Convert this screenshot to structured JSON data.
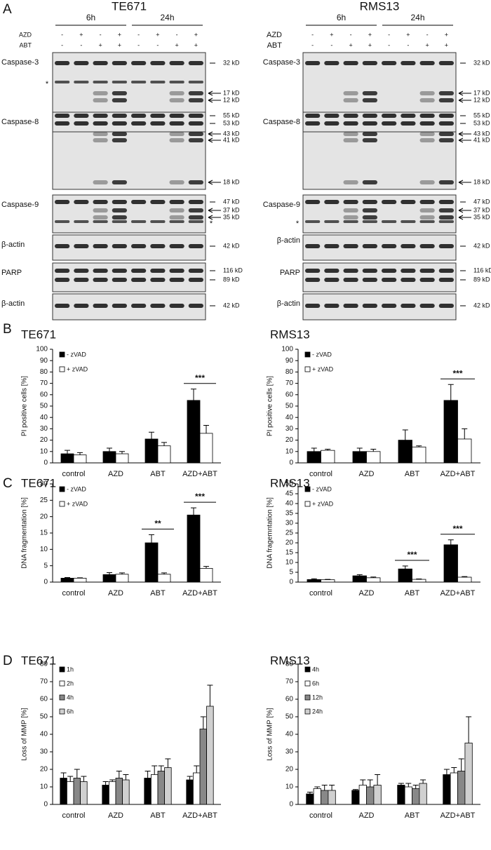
{
  "panel_labels": [
    "A",
    "B",
    "C",
    "D"
  ],
  "blots": [
    {
      "title": "TE671",
      "time_labels": [
        "6h",
        "24h"
      ],
      "treatments": [
        {
          "name": "AZD",
          "marks": [
            "-",
            "+",
            "-",
            "+",
            "-",
            "+",
            "-",
            "+"
          ]
        },
        {
          "name": "ABT",
          "marks": [
            "-",
            "-",
            "+",
            "+",
            "-",
            "-",
            "+",
            "+"
          ]
        }
      ],
      "rows": [
        {
          "label": "Caspase-3",
          "markers": [
            "32 kD",
            "17 kD",
            "12 kD"
          ],
          "asterisk": "*",
          "asterisk_side": "left"
        },
        {
          "label": "Caspase-8",
          "markers": [
            "55 kD",
            "53 kD",
            "43 kD",
            "41 kD",
            "18 kD"
          ]
        },
        {
          "label": "Caspase-9",
          "markers": [
            "47 kD",
            "37 kD",
            "35 kD"
          ],
          "asterisk": "*",
          "asterisk_side": "right"
        },
        {
          "label": "β-actin",
          "markers": [
            "42 kD"
          ]
        },
        {
          "label": "PARP",
          "markers": [
            "116 kD",
            "89 kD"
          ]
        },
        {
          "label": "β-actin",
          "markers": [
            "42 kD"
          ]
        }
      ]
    },
    {
      "title": "RMS13",
      "time_labels": [
        "6h",
        "24h"
      ],
      "treatments": [
        {
          "name": "AZD",
          "marks": [
            "-",
            "+",
            "-",
            "+",
            "-",
            "+",
            "-",
            "+"
          ]
        },
        {
          "name": "ABT",
          "marks": [
            "-",
            "-",
            "+",
            "+",
            "-",
            "-",
            "+",
            "+"
          ]
        }
      ],
      "rows": [
        {
          "label": "Caspase-3",
          "markers": [
            "32 kD",
            "17 kD",
            "12 kD"
          ]
        },
        {
          "label": "Caspase-8",
          "markers": [
            "55 kD",
            "53 kD",
            "43 kD",
            "41 kD",
            "18 kD"
          ]
        },
        {
          "label": "Caspase-9",
          "markers": [
            "47 kD",
            "37 kD",
            "35 kD"
          ],
          "asterisk": "*",
          "asterisk_side": "left"
        },
        {
          "label": "β-actin",
          "markers": [
            "42 kD"
          ]
        },
        {
          "label": "PARP",
          "markers": [
            "116 kD",
            "89 kD"
          ]
        },
        {
          "label": "β-actin",
          "markers": [
            "42 kD"
          ]
        }
      ]
    }
  ],
  "chart_data": [
    {
      "type": "bar",
      "title": "TE671",
      "ylabel": "PI positive cells [%]",
      "categories": [
        "control",
        "AZD",
        "ABT",
        "AZD+ABT"
      ],
      "series": [
        {
          "name": "- zVAD",
          "color": "#000000",
          "values": [
            8,
            10,
            21,
            55
          ],
          "errors": [
            3,
            3,
            6,
            10
          ]
        },
        {
          "name": "+ zVAD",
          "color": "#ffffff",
          "values": [
            7,
            8,
            15,
            26
          ],
          "errors": [
            2,
            2,
            3,
            7
          ]
        }
      ],
      "ylim": [
        0,
        100
      ],
      "yticks": [
        0,
        10,
        20,
        30,
        40,
        50,
        60,
        70,
        80,
        90,
        100
      ],
      "legend": "upper left",
      "annotations": [
        {
          "text": "***",
          "category": "AZD+ABT"
        }
      ]
    },
    {
      "type": "bar",
      "title": "RMS13",
      "ylabel": "PI positive cells [%]",
      "categories": [
        "control",
        "AZD",
        "ABT",
        "AZD+ABT"
      ],
      "series": [
        {
          "name": "- zVAD",
          "color": "#000000",
          "values": [
            10,
            10,
            20,
            55
          ],
          "errors": [
            3,
            3,
            9,
            14
          ]
        },
        {
          "name": "+ zVAD",
          "color": "#ffffff",
          "values": [
            11,
            10,
            14,
            21
          ],
          "errors": [
            1,
            2,
            1,
            9
          ]
        }
      ],
      "ylim": [
        0,
        100
      ],
      "yticks": [
        0,
        10,
        20,
        30,
        40,
        50,
        60,
        70,
        80,
        90,
        100
      ],
      "legend": "upper left",
      "annotations": [
        {
          "text": "***",
          "category": "AZD+ABT"
        }
      ]
    },
    {
      "type": "bar",
      "title": "TE671",
      "ylabel": "DNA fragmentation [%]",
      "categories": [
        "control",
        "AZD",
        "ABT",
        "AZD+ABT"
      ],
      "series": [
        {
          "name": "- zVAD",
          "color": "#000000",
          "values": [
            1.2,
            2.3,
            12,
            20.5
          ],
          "errors": [
            0.2,
            0.6,
            2.5,
            2.2
          ]
        },
        {
          "name": "+ zVAD",
          "color": "#ffffff",
          "values": [
            1.2,
            2.4,
            2.4,
            4.2
          ],
          "errors": [
            0.1,
            0.4,
            0.4,
            0.6
          ]
        }
      ],
      "ylim": [
        0,
        30
      ],
      "yticks": [
        0,
        5,
        10,
        15,
        20,
        25,
        30
      ],
      "legend": "upper left",
      "annotations": [
        {
          "text": "**",
          "category": "ABT"
        },
        {
          "text": "***",
          "category": "AZD+ABT"
        }
      ]
    },
    {
      "type": "bar",
      "title": "RMS13",
      "ylabel": "DNA fragemntation [%]",
      "categories": [
        "control",
        "AZD",
        "ABT",
        "AZD+ABT"
      ],
      "series": [
        {
          "name": "- zVAD",
          "color": "#000000",
          "values": [
            1.3,
            3.2,
            6.7,
            19
          ],
          "errors": [
            0.4,
            0.6,
            1.5,
            2.5
          ]
        },
        {
          "name": "+ zVAD",
          "color": "#ffffff",
          "values": [
            1.2,
            2.2,
            1.4,
            2.5
          ],
          "errors": [
            0.2,
            0.4,
            0.2,
            0.3
          ]
        }
      ],
      "ylim": [
        0,
        50
      ],
      "yticks": [
        0,
        5,
        10,
        15,
        20,
        25,
        30,
        35,
        40,
        45,
        50
      ],
      "legend": "upper left",
      "annotations": [
        {
          "text": "***",
          "category": "ABT"
        },
        {
          "text": "***",
          "category": "AZD+ABT"
        }
      ]
    },
    {
      "type": "bar",
      "title": "TE671",
      "ylabel": "Loss of MMP [%]",
      "categories": [
        "control",
        "AZD",
        "ABT",
        "AZD+ABT"
      ],
      "series": [
        {
          "name": "1h",
          "color": "#000000",
          "values": [
            15,
            11,
            15,
            14
          ],
          "errors": [
            3,
            2,
            4,
            2
          ]
        },
        {
          "name": "2h",
          "color": "#ffffff",
          "values": [
            13,
            13,
            17,
            18
          ],
          "errors": [
            3,
            1,
            5,
            4
          ]
        },
        {
          "name": "4h",
          "color": "#888888",
          "values": [
            15,
            15,
            19,
            43
          ],
          "errors": [
            5,
            4,
            3,
            7
          ]
        },
        {
          "name": "6h",
          "color": "#d0d0d0",
          "values": [
            13,
            14,
            21,
            56
          ],
          "errors": [
            3,
            3,
            5,
            12
          ]
        }
      ],
      "ylim": [
        0,
        80
      ],
      "yticks": [
        0,
        10,
        20,
        30,
        40,
        50,
        60,
        70,
        80
      ],
      "legend": "upper left"
    },
    {
      "type": "bar",
      "title": "RMS13",
      "ylabel": "Loss of MMP [%]",
      "categories": [
        "control",
        "AZD",
        "ABT",
        "AZD+ABT"
      ],
      "series": [
        {
          "name": "4h",
          "color": "#000000",
          "values": [
            6,
            8,
            11,
            17
          ],
          "errors": [
            1,
            0.5,
            1,
            3
          ]
        },
        {
          "name": "6h",
          "color": "#ffffff",
          "values": [
            9,
            11,
            10,
            18
          ],
          "errors": [
            1,
            3,
            2,
            3
          ]
        },
        {
          "name": "12h",
          "color": "#888888",
          "values": [
            8,
            10,
            9,
            19
          ],
          "errors": [
            3,
            4,
            2,
            7
          ]
        },
        {
          "name": "24h",
          "color": "#d0d0d0",
          "values": [
            8,
            11,
            12,
            35
          ],
          "errors": [
            3,
            6,
            2,
            15
          ]
        }
      ],
      "ylim": [
        0,
        80
      ],
      "yticks": [
        0,
        10,
        20,
        30,
        40,
        50,
        60,
        70,
        80
      ],
      "legend": "upper left"
    }
  ]
}
